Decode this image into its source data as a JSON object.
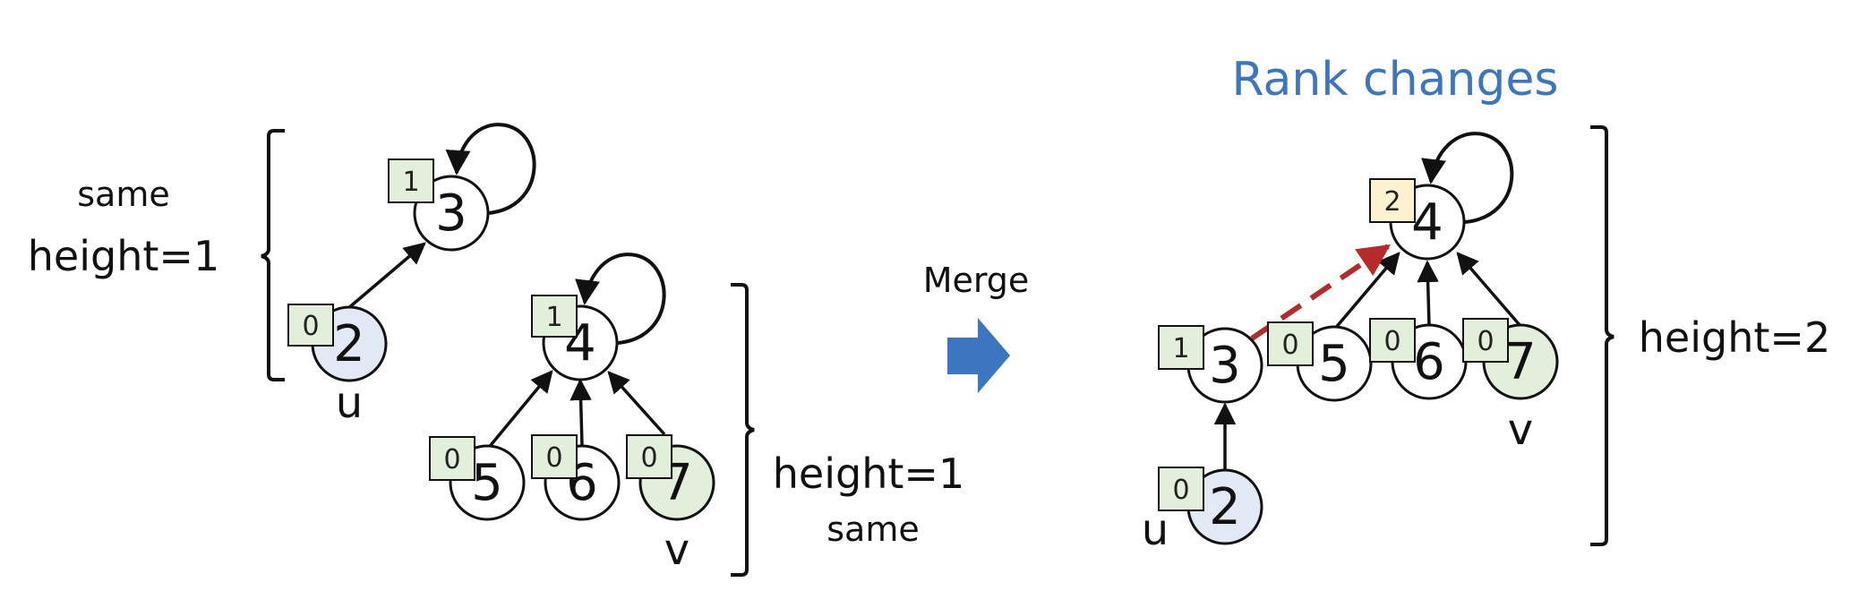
{
  "colors": {
    "node_fill": "#ffffff",
    "node_u_fill": "#e1e9f4",
    "node_v_fill": "#e2efdb",
    "rank_fill": "#e2efdb",
    "rank_changed_fill": "#fdf2cf",
    "edge": "#111111",
    "new_edge": "#b72a2a",
    "title": "#3b76be",
    "merge_arrow": "#3b76be"
  },
  "left": {
    "labels": {
      "same_top": "same",
      "height_top": "height=1",
      "height_bottom": "height=1",
      "same_bottom": "same",
      "u": "u",
      "v": "v"
    },
    "nodes": [
      {
        "id": "3",
        "rank": "1",
        "kind": "plain",
        "self_loop": true
      },
      {
        "id": "2",
        "rank": "0",
        "kind": "u"
      },
      {
        "id": "4",
        "rank": "1",
        "kind": "plain",
        "self_loop": true
      },
      {
        "id": "5",
        "rank": "0",
        "kind": "plain"
      },
      {
        "id": "6",
        "rank": "0",
        "kind": "plain"
      },
      {
        "id": "7",
        "rank": "0",
        "kind": "v"
      }
    ],
    "edges": [
      {
        "from": "2",
        "to": "3"
      },
      {
        "from": "5",
        "to": "4"
      },
      {
        "from": "6",
        "to": "4"
      },
      {
        "from": "7",
        "to": "4"
      }
    ]
  },
  "merge": {
    "label": "Merge",
    "icon": "right-arrow-icon"
  },
  "right": {
    "title": "Rank changes",
    "labels": {
      "height": "height=2",
      "u": "u",
      "v": "v"
    },
    "nodes": [
      {
        "id": "4",
        "rank": "2",
        "kind": "plain",
        "self_loop": true,
        "rank_changed": true
      },
      {
        "id": "3",
        "rank": "1",
        "kind": "plain"
      },
      {
        "id": "5",
        "rank": "0",
        "kind": "plain"
      },
      {
        "id": "6",
        "rank": "0",
        "kind": "plain"
      },
      {
        "id": "7",
        "rank": "0",
        "kind": "v"
      },
      {
        "id": "2",
        "rank": "0",
        "kind": "u"
      }
    ],
    "edges": [
      {
        "from": "5",
        "to": "4"
      },
      {
        "from": "6",
        "to": "4"
      },
      {
        "from": "7",
        "to": "4"
      },
      {
        "from": "2",
        "to": "3"
      },
      {
        "from": "3",
        "to": "4",
        "new": true
      }
    ]
  }
}
